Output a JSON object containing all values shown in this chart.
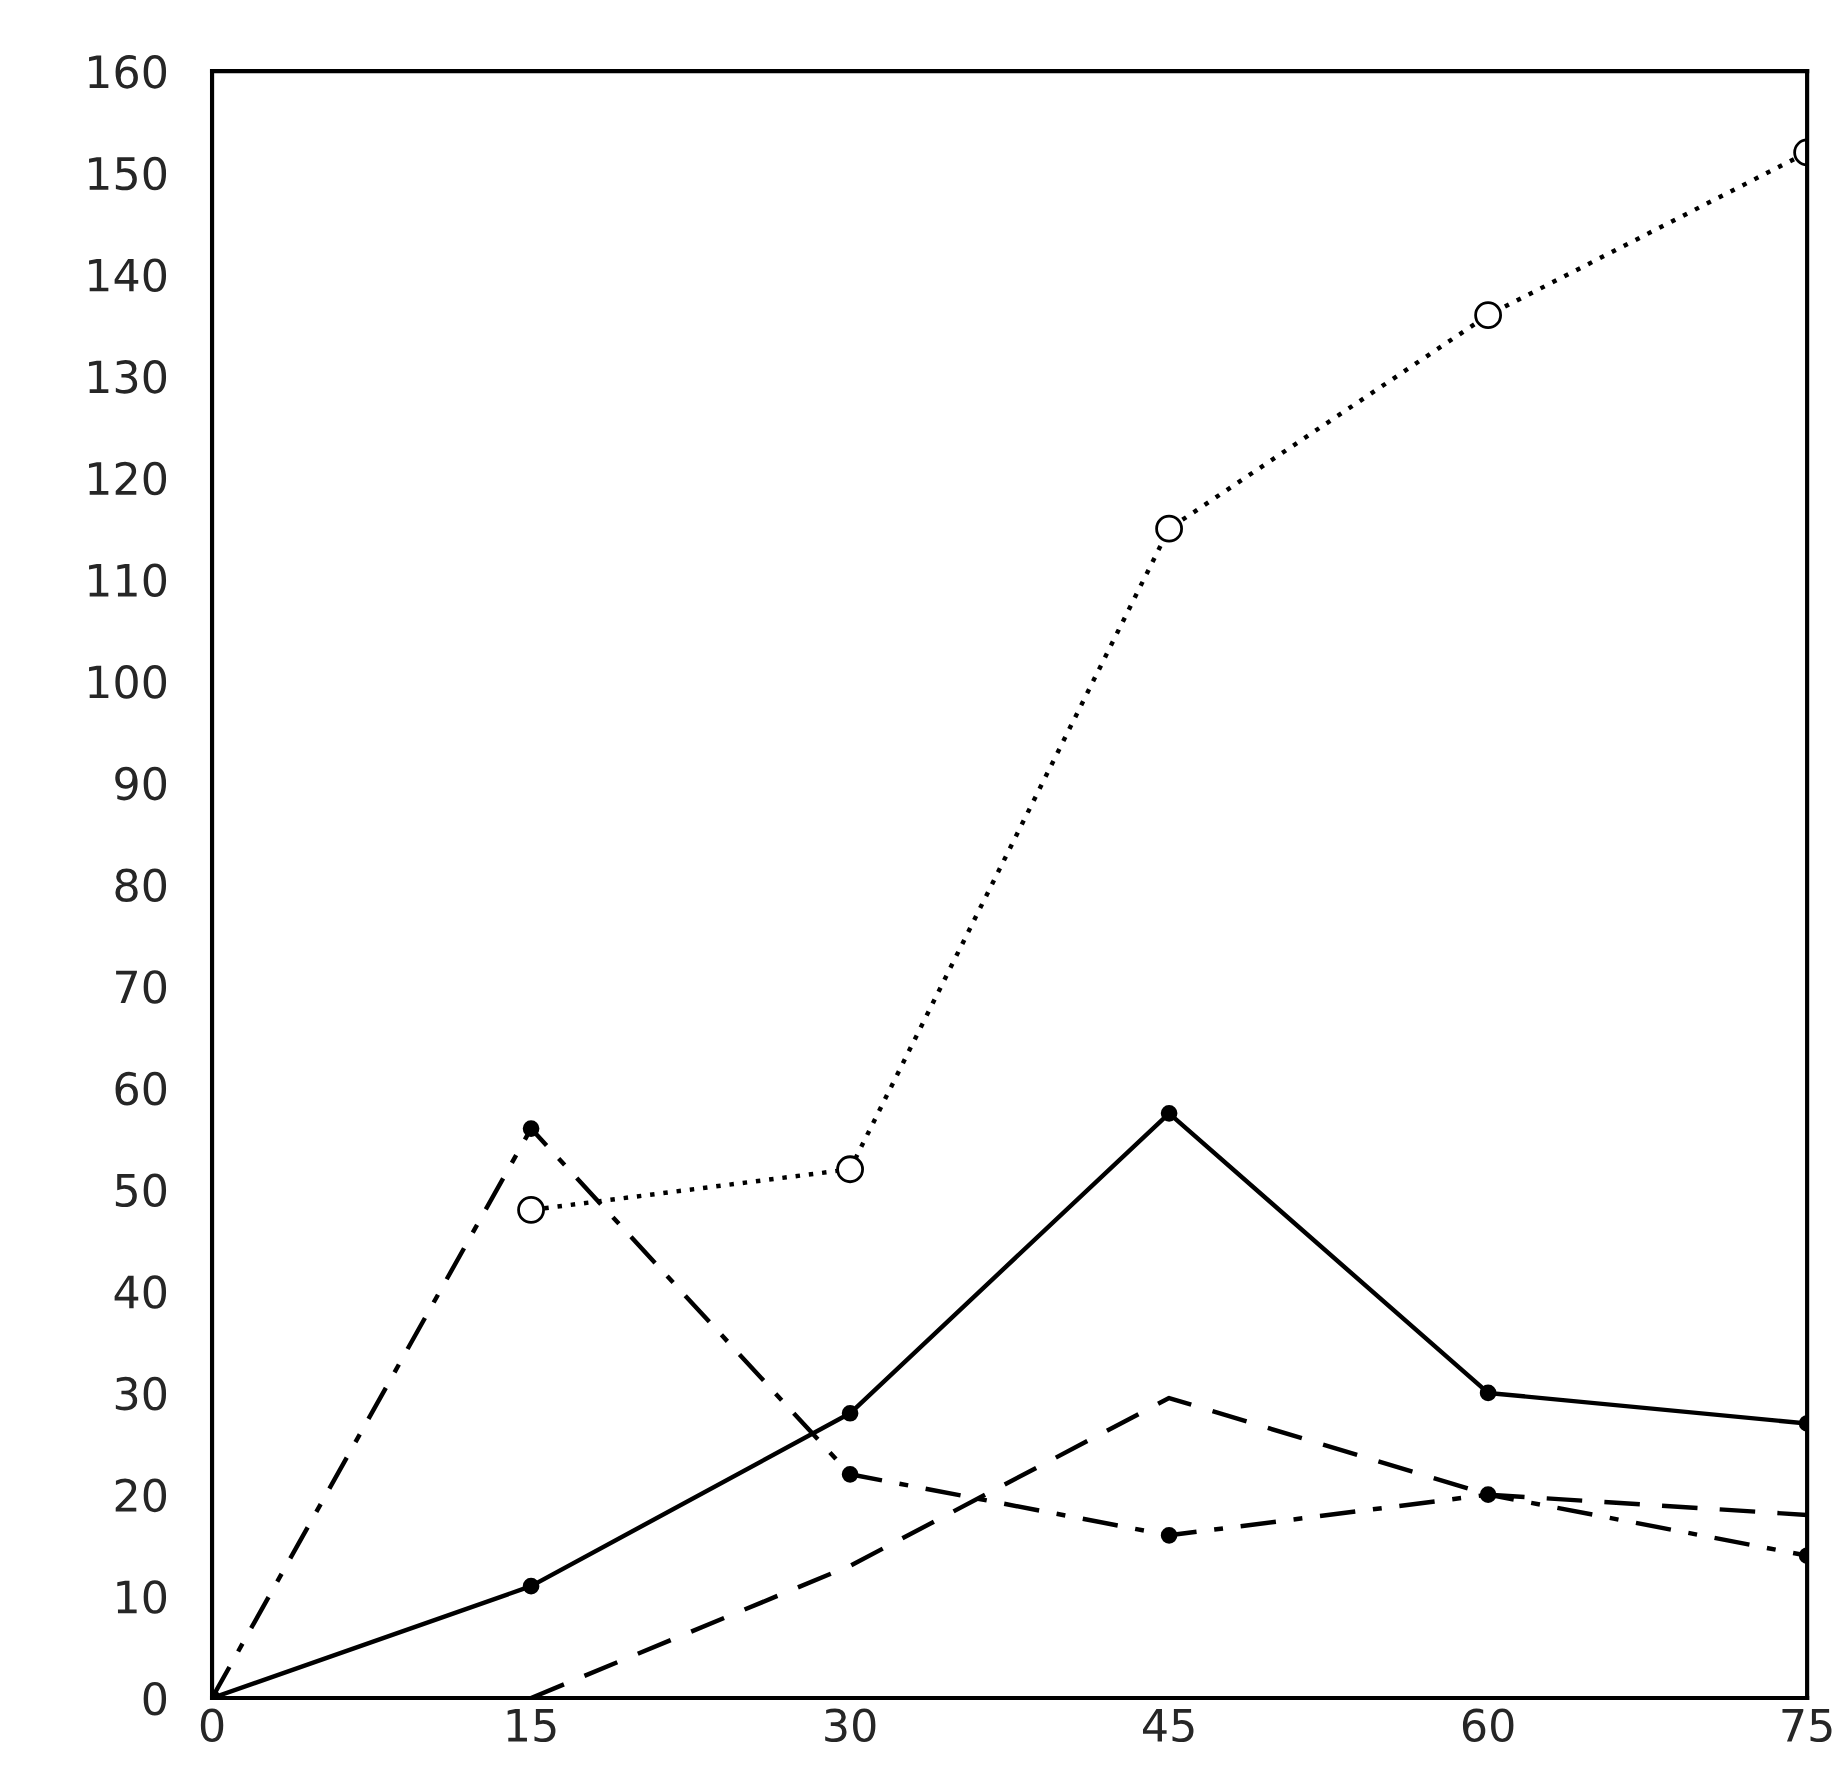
{
  "chart_data": {
    "type": "line",
    "x": [
      0,
      15,
      30,
      45,
      60,
      75
    ],
    "series": [
      {
        "color": "#000000",
        "values": [
          null,
          48,
          52,
          115,
          136,
          152
        ],
        "marker": "circle",
        "line_style": "dotted"
      },
      {
        "color": "#000000",
        "values": [
          0,
          11,
          28,
          57.5,
          30,
          27
        ],
        "marker": "dot",
        "line_style": "solid"
      },
      {
        "color": "#000000",
        "values": [
          null,
          0,
          13,
          29.5,
          20,
          18
        ],
        "marker": "none",
        "line_style": "dashed"
      },
      {
        "color": "#000000",
        "values": [
          0,
          56,
          22,
          16,
          20,
          14
        ],
        "marker": "dot",
        "line_style": "dashdot"
      }
    ],
    "xlim": [
      0,
      75
    ],
    "ylim": [
      0,
      160
    ],
    "xticks": [
      0,
      15,
      30,
      45,
      60,
      75
    ],
    "yticks": [
      0,
      10,
      20,
      30,
      40,
      50,
      60,
      70,
      80,
      90,
      100,
      110,
      120,
      130,
      140,
      150,
      160
    ],
    "grid": false,
    "legend": false
  }
}
